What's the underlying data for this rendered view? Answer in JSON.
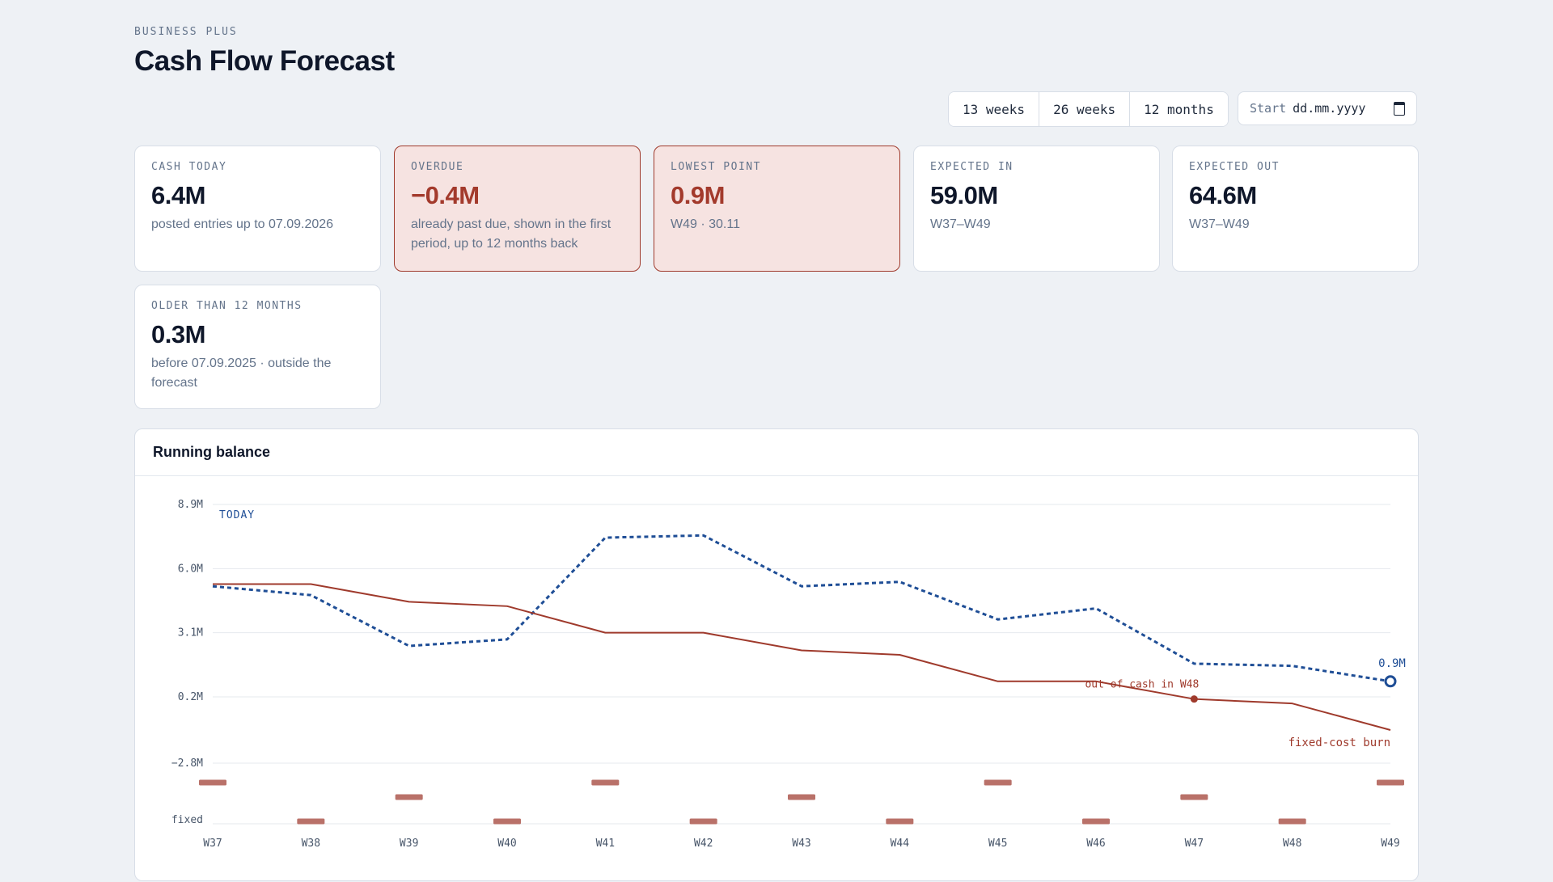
{
  "header": {
    "eyebrow": "BUSINESS PLUS",
    "title": "Cash Flow Forecast"
  },
  "controls": {
    "ranges": [
      "13 weeks",
      "26 weeks",
      "12 months"
    ],
    "start_label": "Start",
    "start_placeholder": "dd.mm.yyyy"
  },
  "cards": [
    {
      "label": "CASH TODAY",
      "value": "6.4M",
      "detail": "posted entries up to 07.09.2026",
      "alert": false
    },
    {
      "label": "OVERDUE",
      "value": "−0.4M",
      "detail": "already past due, shown in the first period, up to 12 months back",
      "alert": true
    },
    {
      "label": "LOWEST POINT",
      "value": "0.9M",
      "detail": "W49 · 30.11",
      "alert": true
    },
    {
      "label": "EXPECTED IN",
      "value": "59.0M",
      "detail": "W37–W49",
      "alert": false
    },
    {
      "label": "EXPECTED OUT",
      "value": "64.6M",
      "detail": "W37–W49",
      "alert": false
    },
    {
      "label": "OLDER THAN 12 MONTHS",
      "value": "0.3M",
      "detail": "before 07.09.2025 · outside the forecast",
      "alert": false
    }
  ],
  "panel": {
    "title": "Running balance"
  },
  "chart_data": {
    "type": "line",
    "x": [
      "W37",
      "W38",
      "W39",
      "W40",
      "W41",
      "W42",
      "W43",
      "W44",
      "W45",
      "W46",
      "W47",
      "W48",
      "W49"
    ],
    "y_ticks": [
      "8.9M",
      "6.0M",
      "3.1M",
      "0.2M",
      "−2.8M"
    ],
    "y_tick_values": [
      8.9,
      6.0,
      3.1,
      0.2,
      -2.8
    ],
    "ylim": [
      -2.8,
      8.9
    ],
    "series": [
      {
        "values": [
          5.2,
          4.8,
          2.5,
          2.8,
          7.4,
          7.5,
          5.2,
          5.4,
          3.7,
          4.2,
          1.7,
          1.6,
          0.9
        ],
        "color": "#1f4e96",
        "style": "dotted"
      },
      {
        "name": "fixed-cost burn",
        "values": [
          5.3,
          5.3,
          4.5,
          4.3,
          3.1,
          3.1,
          2.3,
          2.1,
          0.9,
          0.9,
          0.1,
          -0.1,
          -1.3
        ],
        "color": "#9f3a2c",
        "style": "solid"
      }
    ],
    "fixed_row_label": "fixed",
    "fixed_marks": [
      0,
      2,
      1,
      2,
      0,
      2,
      1,
      2,
      0,
      2,
      1,
      2,
      0
    ],
    "annotations": {
      "today": "TODAY",
      "end_value": "0.9M",
      "out_of_cash": "out of cash in W48",
      "out_of_cash_index": 10
    },
    "colors": {
      "forecast": "#1f4e96",
      "burn": "#9f3a2c",
      "fixed": "#b97169",
      "grid": "#e6e9ee",
      "axis": "#475569"
    }
  }
}
